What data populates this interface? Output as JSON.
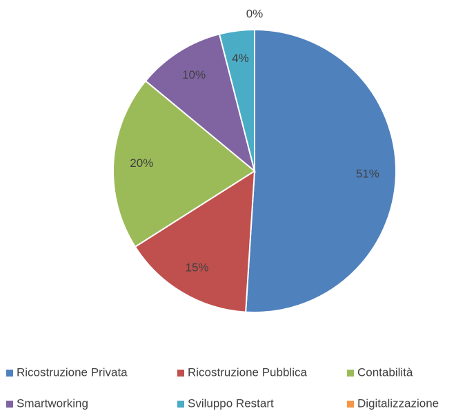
{
  "chart_data": {
    "type": "pie",
    "categories": [
      "Ricostruzione Privata",
      "Ricostruzione Pubblica",
      "Contabilità",
      "Smartworking",
      "Sviluppo Restart",
      "Digitalizzazione"
    ],
    "values": [
      51,
      15,
      20,
      10,
      4,
      0
    ],
    "value_labels": [
      "51%",
      "15%",
      "20%",
      "10%",
      "4%",
      "0%"
    ],
    "colors": [
      "#4f81bd",
      "#c0504d",
      "#9bbb59",
      "#8064a2",
      "#4bacc6",
      "#f79646"
    ],
    "legend": "bottom"
  }
}
